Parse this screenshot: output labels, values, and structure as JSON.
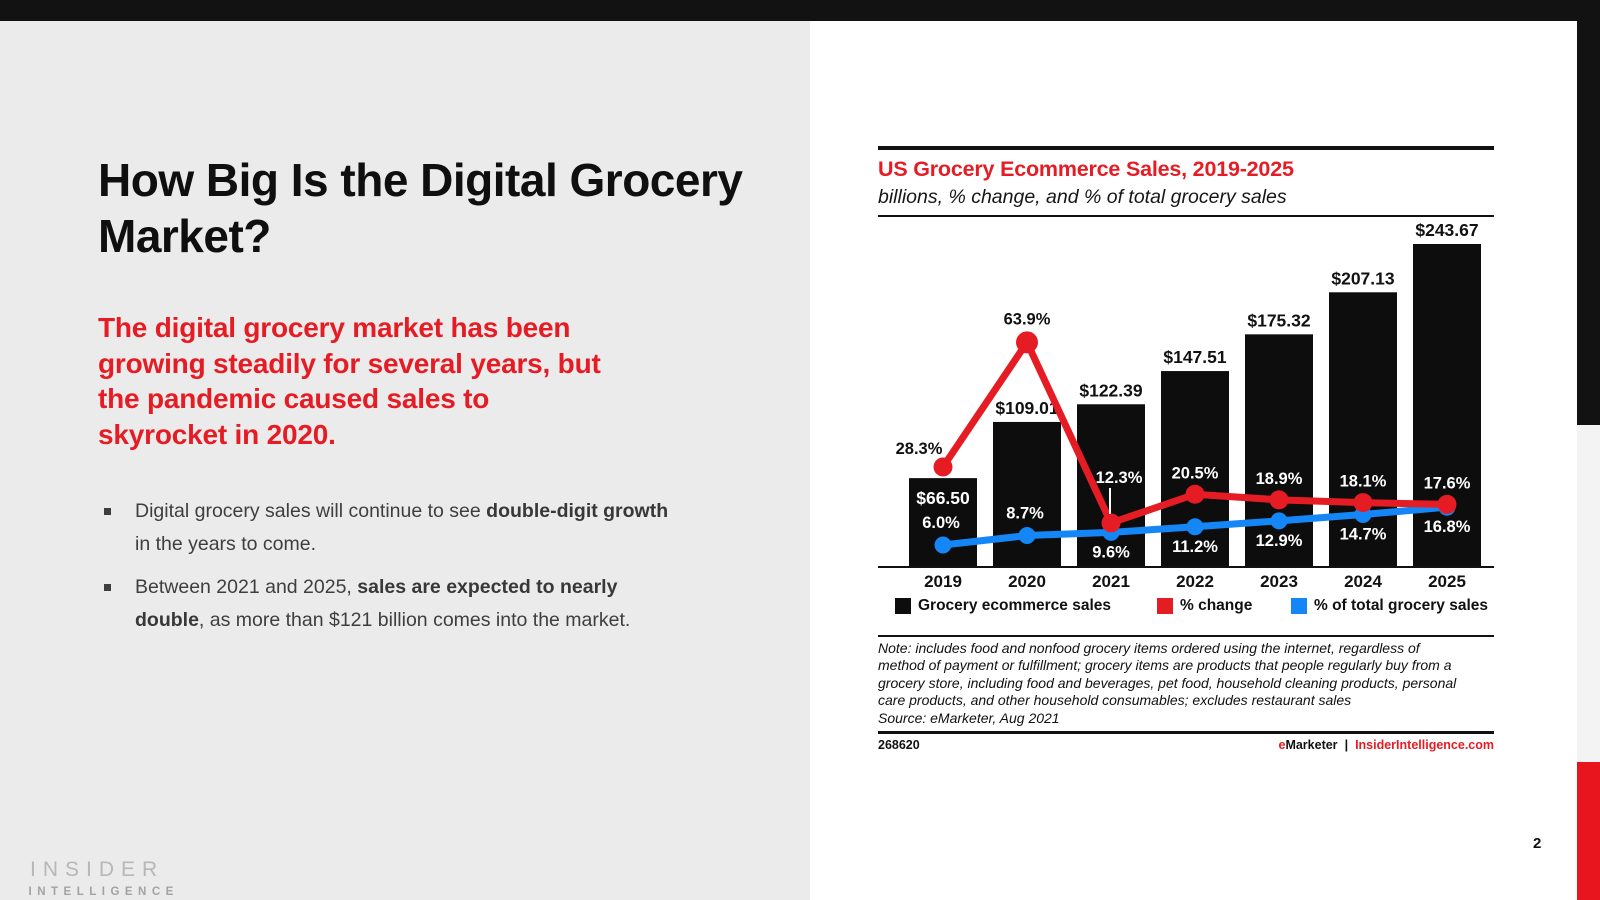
{
  "page": {
    "page_number": "2",
    "logo_line1": "INSIDER",
    "logo_line2": "INTELLIGENCE"
  },
  "left_panel": {
    "title": "How Big Is the Digital Grocery Market?",
    "lede_lines": [
      "The digital grocery market has been",
      "growing steadily for several years, but",
      "the pandemic caused sales to",
      "skyrocket in 2020."
    ],
    "bullets": [
      {
        "segments": [
          {
            "text": "Digital grocery sales will continue to see ",
            "bold": false
          },
          {
            "text": "double-digit growth",
            "bold": true
          },
          {
            "text": " in the years to come.",
            "bold": false
          }
        ]
      },
      {
        "segments": [
          {
            "text": "Between 2021 and 2025, ",
            "bold": false
          },
          {
            "text": "sales are expected to nearly double",
            "bold": true
          },
          {
            "text": ", as more than $121 billion comes into the market.",
            "bold": false
          }
        ]
      }
    ]
  },
  "chart": {
    "title": "US Grocery Ecommerce Sales, 2019-2025",
    "subtitle": "billions, % change, and % of total grocery sales",
    "legend": [
      {
        "label": "Grocery ecommerce sales",
        "color": "#0d0d0d"
      },
      {
        "label": "% change",
        "color": "#e61c24"
      },
      {
        "label": "% of total grocery sales",
        "color": "#1486f6"
      }
    ],
    "note": "Note: includes food and nonfood grocery items ordered using the internet, regardless of method of payment or fulfillment; grocery items are products that people regularly buy from a grocery store, including food and beverages, pet food, household cleaning products, personal care products, and other household consumables; excludes restaurant sales",
    "source": "Source: eMarketer, Aug 2021",
    "chart_id": "268620",
    "brand_e": "e",
    "brand_marketer": "Marketer",
    "brand_sep": "|",
    "brand_site": "InsiderIntelligence.com"
  },
  "chart_data": {
    "type": "bar+line",
    "title": "US Grocery Ecommerce Sales, 2019-2025",
    "subtitle": "billions, % change, and % of total grocery sales",
    "categories": [
      "2019",
      "2020",
      "2021",
      "2022",
      "2023",
      "2024",
      "2025"
    ],
    "series": [
      {
        "name": "Grocery ecommerce sales",
        "chart": "bar",
        "unit": "USD billions",
        "color": "#0d0d0d",
        "values": [
          66.5,
          109.01,
          122.39,
          147.51,
          175.32,
          207.13,
          243.67
        ],
        "labels": [
          "$66.50",
          "$109.01",
          "$122.39",
          "$147.51",
          "$175.32",
          "$207.13",
          "$243.67"
        ]
      },
      {
        "name": "% change",
        "chart": "line",
        "unit": "%",
        "color": "#e61c24",
        "values": [
          28.3,
          63.9,
          12.3,
          20.5,
          18.9,
          18.1,
          17.6
        ],
        "labels": [
          "28.3%",
          "63.9%",
          "12.3%",
          "20.5%",
          "18.9%",
          "18.1%",
          "17.6%"
        ]
      },
      {
        "name": "% of total grocery sales",
        "chart": "line",
        "unit": "%",
        "color": "#1486f6",
        "values": [
          6.0,
          8.7,
          9.6,
          11.2,
          12.9,
          14.7,
          16.8
        ],
        "labels": [
          "6.0%",
          "8.7%",
          "9.6%",
          "11.2%",
          "12.9%",
          "14.7%",
          "16.8%"
        ]
      }
    ],
    "ylim": [
      0,
      260
    ],
    "grid": false,
    "legend_position": "bottom"
  },
  "colors": {
    "accent_red": "#e61c24",
    "accent_blue": "#1486f6",
    "bar_black": "#0d0d0d",
    "panel_gray": "#ebebeb",
    "strip_gray": "#f3f3f3"
  }
}
